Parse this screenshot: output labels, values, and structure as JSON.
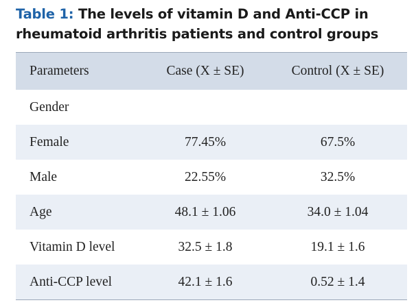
{
  "caption": {
    "label": "Table 1:",
    "text": " The levels of vitamin D and Anti-CCP in rheumatoid arthritis patients and control groups"
  },
  "table": {
    "headers": [
      "Parameters",
      "Case (X ± SE)",
      "Control (X ± SE)"
    ],
    "rows": [
      {
        "parameter": "Gender",
        "case": "",
        "control": ""
      },
      {
        "parameter": "Female",
        "case": "77.45%",
        "control": "67.5%"
      },
      {
        "parameter": "Male",
        "case": "22.55%",
        "control": "32.5%"
      },
      {
        "parameter": "Age",
        "case": "48.1 ± 1.06",
        "control": "34.0 ± 1.04"
      },
      {
        "parameter": "Vitamin D level",
        "case": "32.5 ± 1.8",
        "control": "19.1 ± 1.6"
      },
      {
        "parameter": "Anti-CCP level",
        "case": "42.1 ± 1.6",
        "control": "0.52 ± 1.4"
      }
    ]
  },
  "colors": {
    "caption_label": "#1f63a8",
    "header_bg": "#d3dce8",
    "alt_row_bg": "#eaeff6"
  }
}
